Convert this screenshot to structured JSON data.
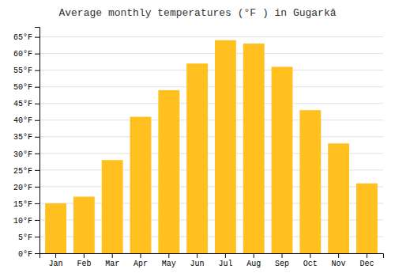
{
  "chart_data": {
    "type": "bar",
    "title": "Average monthly temperatures (°F ) in Gugarkâ",
    "categories": [
      "Jan",
      "Feb",
      "Mar",
      "Apr",
      "May",
      "Jun",
      "Jul",
      "Aug",
      "Sep",
      "Oct",
      "Nov",
      "Dec"
    ],
    "values": [
      15,
      17,
      28,
      41,
      49,
      57,
      64,
      63,
      56,
      43,
      33,
      21
    ],
    "color": "#FFC020",
    "ylim": [
      0,
      68
    ],
    "yticks": [
      {
        "value": 0,
        "label": "0°F"
      },
      {
        "value": 5,
        "label": "5°F"
      },
      {
        "value": 10,
        "label": "10°F"
      },
      {
        "value": 15,
        "label": "15°F"
      },
      {
        "value": 20,
        "label": "20°F"
      },
      {
        "value": 25,
        "label": "25°F"
      },
      {
        "value": 30,
        "label": "30°F"
      },
      {
        "value": 35,
        "label": "35°F"
      },
      {
        "value": 40,
        "label": "40°F"
      },
      {
        "value": 45,
        "label": "45°F"
      },
      {
        "value": 50,
        "label": "50°F"
      },
      {
        "value": 55,
        "label": "55°F"
      },
      {
        "value": 60,
        "label": "60°F"
      },
      {
        "value": 65,
        "label": "65°F"
      }
    ],
    "grid": true
  }
}
